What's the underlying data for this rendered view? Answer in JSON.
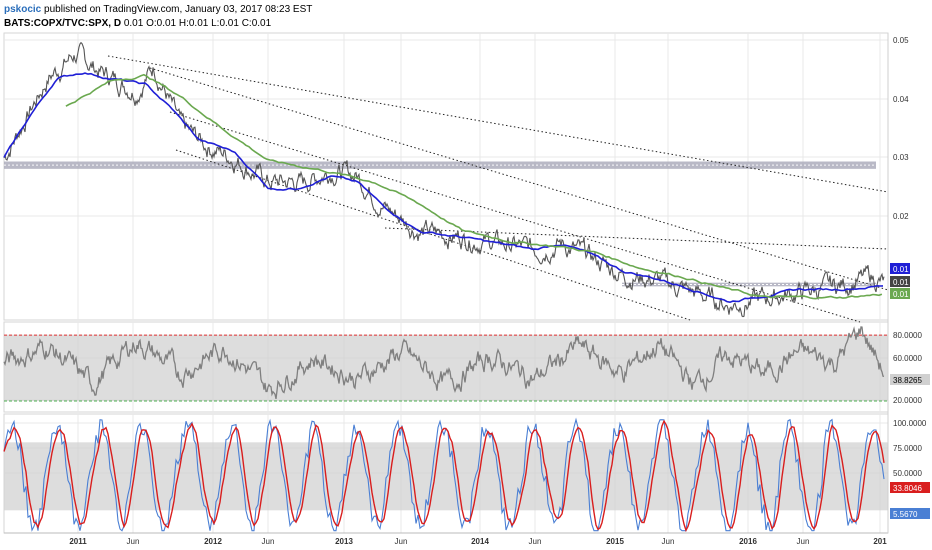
{
  "header": {
    "author": "pskocic",
    "published_text": "published on TradingView.com, January 03, 2017 08:23 EST",
    "symbol": "BATS:COPX/TVC:SPX, D",
    "ohlc": "0.01 O:0.01 H:0.01 L:0.01 C:0.01"
  },
  "colors": {
    "price": "#555555",
    "ma_fast": "#1f1fd6",
    "ma_slow": "#6aa84f",
    "rsi": "#7f7f7f",
    "stoch_k": "#4a7fd4",
    "stoch_d": "#d91e1e",
    "support_band": "#a8a8b8",
    "rsi_upper": "#e03030",
    "rsi_lower": "#4caf50"
  },
  "chart_data": [
    {
      "type": "line",
      "panel": "price",
      "x_ticks": [
        "2011",
        "Jun",
        "2012",
        "Jun",
        "2013",
        "Jun",
        "2014",
        "Jun",
        "2015",
        "Jun",
        "2016",
        "Jun",
        "201"
      ],
      "y_ticks": [
        "0.05",
        "0.04",
        "0.03",
        "0.02"
      ],
      "ylim": [
        0.0045,
        0.0514
      ],
      "price_labels": [
        {
          "text": "0.01",
          "color": "#1f1fd6"
        },
        {
          "text": "0.01",
          "color": "#444444"
        },
        {
          "text": "0.01",
          "color": "#6aa84f"
        }
      ],
      "series": [
        {
          "role": "price",
          "anchors": [
            [
              0,
              0.031
            ],
            [
              0.05,
              0.044
            ],
            [
              0.08,
              0.048
            ],
            [
              0.11,
              0.045
            ],
            [
              0.15,
              0.042
            ],
            [
              0.17,
              0.046
            ],
            [
              0.2,
              0.036
            ],
            [
              0.23,
              0.033
            ],
            [
              0.26,
              0.031
            ],
            [
              0.3,
              0.027
            ],
            [
              0.34,
              0.027
            ],
            [
              0.37,
              0.029
            ],
            [
              0.4,
              0.028
            ],
            [
              0.43,
              0.023
            ],
            [
              0.47,
              0.019
            ],
            [
              0.52,
              0.018
            ],
            [
              0.56,
              0.017
            ],
            [
              0.6,
              0.016
            ],
            [
              0.63,
              0.017
            ],
            [
              0.66,
              0.015
            ],
            [
              0.7,
              0.012
            ],
            [
              0.74,
              0.011
            ],
            [
              0.78,
              0.009
            ],
            [
              0.82,
              0.007
            ],
            [
              0.86,
              0.008
            ],
            [
              0.9,
              0.009
            ],
            [
              0.94,
              0.01
            ],
            [
              0.98,
              0.0115
            ],
            [
              1,
              0.0103
            ]
          ]
        },
        {
          "role": "ma_fast",
          "anchors": [
            [
              0,
              0.031
            ],
            [
              0.03,
              0.038
            ],
            [
              0.06,
              0.044
            ],
            [
              0.09,
              0.045
            ],
            [
              0.12,
              0.044
            ],
            [
              0.16,
              0.043
            ],
            [
              0.19,
              0.039
            ],
            [
              0.22,
              0.034
            ],
            [
              0.26,
              0.032
            ],
            [
              0.3,
              0.026
            ],
            [
              0.33,
              0.026
            ],
            [
              0.37,
              0.028
            ],
            [
              0.4,
              0.027
            ],
            [
              0.43,
              0.023
            ],
            [
              0.47,
              0.019
            ],
            [
              0.52,
              0.018
            ],
            [
              0.56,
              0.017
            ],
            [
              0.6,
              0.016
            ],
            [
              0.63,
              0.017
            ],
            [
              0.66,
              0.0155
            ],
            [
              0.7,
              0.0125
            ],
            [
              0.74,
              0.0112
            ],
            [
              0.78,
              0.0095
            ],
            [
              0.82,
              0.0075
            ],
            [
              0.86,
              0.0085
            ],
            [
              0.9,
              0.0095
            ],
            [
              0.94,
              0.0095
            ],
            [
              0.98,
              0.0099
            ],
            [
              1,
              0.0102
            ]
          ]
        },
        {
          "role": "ma_slow",
          "anchors": [
            [
              0.07,
              0.0395
            ],
            [
              0.12,
              0.0435
            ],
            [
              0.16,
              0.0445
            ],
            [
              0.2,
              0.041
            ],
            [
              0.25,
              0.0355
            ],
            [
              0.3,
              0.0305
            ],
            [
              0.36,
              0.029
            ],
            [
              0.42,
              0.027
            ],
            [
              0.47,
              0.0235
            ],
            [
              0.52,
              0.019
            ],
            [
              0.58,
              0.0172
            ],
            [
              0.63,
              0.0165
            ],
            [
              0.67,
              0.0155
            ],
            [
              0.72,
              0.013
            ],
            [
              0.77,
              0.0115
            ],
            [
              0.82,
              0.0095
            ],
            [
              0.86,
              0.0082
            ],
            [
              0.91,
              0.0082
            ],
            [
              0.95,
              0.0082
            ],
            [
              1,
              0.0088
            ]
          ]
        }
      ],
      "support_band": [
        0.0292,
        0.0304
      ],
      "support_band_low": [
        0.01,
        0.0106
      ]
    },
    {
      "type": "line",
      "panel": "rsi",
      "y_ticks": [
        "80.0000",
        "60.0000",
        "20.0000"
      ],
      "ylim": [
        10,
        92
      ],
      "upper_line": 80,
      "lower_line": 20,
      "last_value_label": "38.8265",
      "series": [
        {
          "role": "rsi",
          "anchors": [
            [
              0,
              55
            ],
            [
              0.05,
              70
            ],
            [
              0.1,
              35
            ],
            [
              0.15,
              75
            ],
            [
              0.2,
              45
            ],
            [
              0.25,
              70
            ],
            [
              0.3,
              30
            ],
            [
              0.35,
              60
            ],
            [
              0.4,
              40
            ],
            [
              0.45,
              65
            ],
            [
              0.5,
              35
            ],
            [
              0.55,
              60
            ],
            [
              0.6,
              40
            ],
            [
              0.65,
              70
            ],
            [
              0.7,
              45
            ],
            [
              0.74,
              72
            ],
            [
              0.78,
              35
            ],
            [
              0.82,
              62
            ],
            [
              0.86,
              45
            ],
            [
              0.9,
              65
            ],
            [
              0.94,
              55
            ],
            [
              0.97,
              86
            ],
            [
              1,
              38.8
            ]
          ]
        }
      ]
    },
    {
      "type": "line",
      "panel": "stochastic",
      "y_ticks": [
        "100.0000",
        "75.0000",
        "50.0000"
      ],
      "ylim": [
        0,
        105
      ],
      "band": [
        20,
        80
      ],
      "last_value_labels": [
        {
          "text": "33.8046",
          "color": "#d91e1e"
        },
        {
          "text": "5.5670",
          "color": "#4a7fd4"
        }
      ]
    }
  ]
}
